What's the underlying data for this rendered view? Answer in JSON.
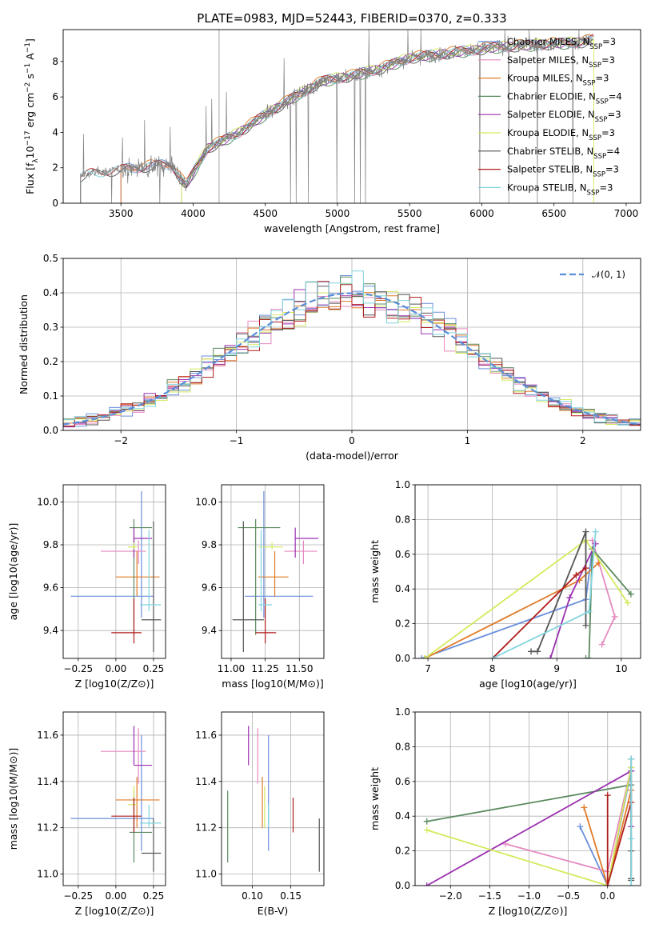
{
  "title": "PLATE=0983, MJD=52443, FIBERID=0370, z=0.333",
  "colors": {
    "chabrier_miles": "#6a8fdc",
    "salpeter_miles": "#e58abf",
    "kroupa_miles": "#e07b28",
    "chabrier_elodie": "#5a8a5e",
    "salpeter_elodie": "#9b30b0",
    "kroupa_elodie": "#d4ea5c",
    "chabrier_stelib": "#555555",
    "salpeter_stelib": "#b01c1c",
    "kroupa_stelib": "#82d4de",
    "data": "#808080",
    "normal": "#5b8fd8"
  },
  "chart_data": [
    {
      "id": "spectrum",
      "type": "line",
      "xlabel": "wavelength [Angstrom, rest frame]",
      "ylabel": "Flux [f_λ10^-17 erg cm^-2 s^-1 A^-1]",
      "xlim": [
        3100,
        7100
      ],
      "ylim": [
        0,
        9.8
      ],
      "xticks": [
        3500,
        4000,
        4500,
        5000,
        5500,
        6000,
        6500,
        7000
      ],
      "yticks": [
        0,
        2,
        4,
        6,
        8
      ],
      "trend": {
        "x": [
          3220,
          3300,
          3500,
          3700,
          3850,
          3950,
          4100,
          4300,
          4500,
          4700,
          4900,
          5100,
          5300,
          5500,
          5700,
          5900,
          6100,
          6300,
          6500,
          6700,
          6750,
          6800,
          7000
        ],
        "y": [
          1.5,
          1.7,
          1.9,
          2.1,
          2.2,
          1.0,
          3.1,
          3.9,
          5.0,
          6.0,
          6.9,
          7.2,
          7.6,
          8.2,
          8.4,
          8.6,
          8.8,
          8.9,
          9.0,
          9.1,
          9.2,
          9.3,
          9.4
        ]
      },
      "legend": [
        {
          "label": "Chabrier MILES, N",
          "sub": "SSP",
          "suffix": "=3",
          "color_key": "chabrier_miles"
        },
        {
          "label": "Salpeter MILES, N",
          "sub": "SSP",
          "suffix": "=3",
          "color_key": "salpeter_miles"
        },
        {
          "label": "Kroupa MILES, N",
          "sub": "SSP",
          "suffix": "=3",
          "color_key": "kroupa_miles"
        },
        {
          "label": "Chabrier ELODIE, N",
          "sub": "SSP",
          "suffix": "=4",
          "color_key": "chabrier_elodie"
        },
        {
          "label": "Salpeter ELODIE, N",
          "sub": "SSP",
          "suffix": "=3",
          "color_key": "salpeter_elodie"
        },
        {
          "label": "Kroupa ELODIE, N",
          "sub": "SSP",
          "suffix": "=3",
          "color_key": "kroupa_elodie"
        },
        {
          "label": "Chabrier STELIB, N",
          "sub": "SSP",
          "suffix": "=4",
          "color_key": "chabrier_stelib"
        },
        {
          "label": "Salpeter STELIB, N",
          "sub": "SSP",
          "suffix": "=3",
          "color_key": "salpeter_stelib"
        },
        {
          "label": "Kroupa STELIB, N",
          "sub": "SSP",
          "suffix": "=3",
          "color_key": "kroupa_stelib"
        }
      ]
    },
    {
      "id": "residuals",
      "type": "line",
      "xlabel": "(data-model)/error",
      "ylabel": "Normed distribution",
      "xlim": [
        -2.5,
        2.5
      ],
      "ylim": [
        0,
        0.5
      ],
      "xticks": [
        -2,
        -1,
        0,
        1,
        2
      ],
      "yticks": [
        0.0,
        0.1,
        0.2,
        0.3,
        0.4,
        0.5
      ],
      "legend": "N(0,1)",
      "legend_position": "top-right",
      "bin_width": 0.1
    },
    {
      "id": "age_vs_Z",
      "type": "scatter",
      "xlabel": "Z [log10(Z/Z⊙)]",
      "ylabel": "age [log10(age/yr)]",
      "xlim": [
        -0.35,
        0.33
      ],
      "ylim": [
        9.27,
        10.08
      ],
      "xticks": [
        -0.25,
        0.0,
        0.25
      ],
      "yticks": [
        9.4,
        9.6,
        9.8,
        10.0
      ],
      "points": [
        {
          "key": "chabrier_miles",
          "x": 0.17,
          "xe": [
            0.47,
            0.08
          ],
          "y": 9.56,
          "ye": [
            0.1,
            0.49
          ]
        },
        {
          "key": "salpeter_miles",
          "x": 0.15,
          "xe": [
            0.25,
            0.05
          ],
          "y": 9.77,
          "ye": [
            0.06,
            0.05
          ]
        },
        {
          "key": "kroupa_miles",
          "x": 0.14,
          "xe": [
            0.14,
            0.15
          ],
          "y": 9.65,
          "ye": [
            0.09,
            0.12
          ]
        },
        {
          "key": "chabrier_elodie",
          "x": 0.12,
          "xe": [
            0.03,
            0.12
          ],
          "y": 9.88,
          "ye": [
            0.5,
            0.04
          ]
        },
        {
          "key": "salpeter_elodie",
          "x": 0.12,
          "xe": [
            0.0,
            0.12
          ],
          "y": 9.83,
          "ye": [
            0.09,
            0.05
          ]
        },
        {
          "key": "kroupa_elodie",
          "x": 0.12,
          "xe": [
            0.04,
            0.02
          ],
          "y": 9.79,
          "ye": [
            0.01,
            0.02
          ]
        },
        {
          "key": "chabrier_stelib",
          "x": 0.25,
          "xe": [
            0.08,
            0.05
          ],
          "y": 9.45,
          "ye": [
            0.15,
            0.46
          ]
        },
        {
          "key": "salpeter_stelib",
          "x": 0.12,
          "xe": [
            0.15,
            0.05
          ],
          "y": 9.39,
          "ye": [
            0.05,
            0.16
          ]
        },
        {
          "key": "kroupa_stelib",
          "x": 0.22,
          "xe": [
            0.06,
            0.08
          ],
          "y": 9.52,
          "ye": [
            0.03,
            0.35
          ]
        }
      ]
    },
    {
      "id": "age_vs_mass",
      "type": "scatter",
      "xlabel": "mass [log10(M/M⊙)]",
      "ylabel": "",
      "xlim": [
        10.93,
        11.68
      ],
      "ylim": [
        9.27,
        10.08
      ],
      "xticks": [
        11.0,
        11.25,
        11.5
      ],
      "yticks": [
        9.4,
        9.6,
        9.8,
        10.0
      ],
      "points": [
        {
          "key": "chabrier_miles",
          "x": 11.24,
          "xe": [
            0.14,
            0.36
          ],
          "y": 9.56,
          "ye": [
            0.1,
            0.49
          ]
        },
        {
          "key": "salpeter_miles",
          "x": 11.53,
          "xe": [
            0.14,
            0.1
          ],
          "y": 9.77,
          "ye": [
            0.06,
            0.05
          ]
        },
        {
          "key": "kroupa_miles",
          "x": 11.32,
          "xe": [
            0.12,
            0.1
          ],
          "y": 9.65,
          "ye": [
            0.09,
            0.12
          ]
        },
        {
          "key": "chabrier_elodie",
          "x": 11.18,
          "xe": [
            0.13,
            0.18
          ],
          "y": 9.88,
          "ye": [
            0.5,
            0.04
          ]
        },
        {
          "key": "salpeter_elodie",
          "x": 11.47,
          "xe": [
            0.0,
            0.17
          ],
          "y": 9.83,
          "ye": [
            0.09,
            0.05
          ]
        },
        {
          "key": "kroupa_elodie",
          "x": 11.3,
          "xe": [
            0.1,
            0.08
          ],
          "y": 9.79,
          "ye": [
            0.01,
            0.02
          ]
        },
        {
          "key": "chabrier_stelib",
          "x": 11.09,
          "xe": [
            0.08,
            0.15
          ],
          "y": 9.45,
          "ye": [
            0.15,
            0.46
          ]
        },
        {
          "key": "salpeter_stelib",
          "x": 11.25,
          "xe": [
            0.07,
            0.08
          ],
          "y": 9.39,
          "ye": [
            0.05,
            0.16
          ]
        },
        {
          "key": "kroupa_stelib",
          "x": 11.22,
          "xe": [
            0.02,
            0.08
          ],
          "y": 9.52,
          "ye": [
            0.03,
            0.35
          ]
        }
      ]
    },
    {
      "id": "weight_vs_age",
      "type": "line",
      "xlabel": "age [log10(age/yr)]",
      "ylabel": "mass weight",
      "xlim": [
        6.8,
        10.3
      ],
      "ylim": [
        0,
        1.0
      ],
      "xticks": [
        7,
        8,
        9,
        10
      ],
      "yticks": [
        0.0,
        0.2,
        0.4,
        0.6,
        0.8,
        1.0
      ],
      "series": [
        {
          "key": "chabrier_miles",
          "x": [
            6.9,
            9.45,
            9.55
          ],
          "y": [
            0.0,
            0.34,
            0.63
          ]
        },
        {
          "key": "salpeter_miles",
          "x": [
            9.7,
            9.9,
            9.55
          ],
          "y": [
            0.08,
            0.24,
            0.68
          ]
        },
        {
          "key": "kroupa_miles",
          "x": [
            6.95,
            9.35,
            9.65
          ],
          "y": [
            0.0,
            0.45,
            0.55
          ]
        },
        {
          "key": "chabrier_elodie",
          "x": [
            9.45,
            9.5,
            9.55,
            10.15
          ],
          "y": [
            0.0,
            0.0,
            0.63,
            0.37
          ]
        },
        {
          "key": "salpeter_elodie",
          "x": [
            8.9,
            9.2,
            9.6
          ],
          "y": [
            0.0,
            0.35,
            0.66
          ]
        },
        {
          "key": "kroupa_elodie",
          "x": [
            6.95,
            9.45,
            10.1
          ],
          "y": [
            0.0,
            0.68,
            0.32
          ]
        },
        {
          "key": "chabrier_stelib",
          "x": [
            8.6,
            8.7,
            9.45,
            9.45
          ],
          "y": [
            0.04,
            0.04,
            0.73,
            0.19
          ]
        },
        {
          "key": "salpeter_stelib",
          "x": [
            8.0,
            9.3,
            9.45
          ],
          "y": [
            0.0,
            0.48,
            0.52
          ]
        },
        {
          "key": "kroupa_stelib",
          "x": [
            8.0,
            9.5,
            9.6
          ],
          "y": [
            0.0,
            0.27,
            0.73
          ]
        }
      ]
    },
    {
      "id": "mass_vs_Z",
      "type": "scatter",
      "xlabel": "Z [log10(Z/Z⊙)]",
      "ylabel": "mass [log10(M/M⊙)]",
      "xlim": [
        -0.35,
        0.33
      ],
      "ylim": [
        10.95,
        11.7
      ],
      "xticks": [
        -0.25,
        0.0,
        0.25
      ],
      "yticks": [
        11.0,
        11.2,
        11.4,
        11.6
      ],
      "points": [
        {
          "key": "chabrier_miles",
          "x": 0.17,
          "xe": [
            0.47,
            0.08
          ],
          "y": 11.24,
          "ye": [
            0.14,
            0.36
          ]
        },
        {
          "key": "salpeter_miles",
          "x": 0.15,
          "xe": [
            0.25,
            0.05
          ],
          "y": 11.53,
          "ye": [
            0.14,
            0.1
          ]
        },
        {
          "key": "kroupa_miles",
          "x": 0.14,
          "xe": [
            0.14,
            0.15
          ],
          "y": 11.32,
          "ye": [
            0.12,
            0.1
          ]
        },
        {
          "key": "chabrier_elodie",
          "x": 0.12,
          "xe": [
            0.03,
            0.12
          ],
          "y": 11.18,
          "ye": [
            0.13,
            0.18
          ]
        },
        {
          "key": "salpeter_elodie",
          "x": 0.12,
          "xe": [
            0.0,
            0.12
          ],
          "y": 11.47,
          "ye": [
            0.0,
            0.17
          ]
        },
        {
          "key": "kroupa_elodie",
          "x": 0.12,
          "xe": [
            0.04,
            0.02
          ],
          "y": 11.3,
          "ye": [
            0.1,
            0.08
          ]
        },
        {
          "key": "chabrier_stelib",
          "x": 0.25,
          "xe": [
            0.08,
            0.05
          ],
          "y": 11.09,
          "ye": [
            0.08,
            0.15
          ]
        },
        {
          "key": "salpeter_stelib",
          "x": 0.12,
          "xe": [
            0.15,
            0.05
          ],
          "y": 11.25,
          "ye": [
            0.07,
            0.08
          ]
        },
        {
          "key": "kroupa_stelib",
          "x": 0.22,
          "xe": [
            0.06,
            0.08
          ],
          "y": 11.22,
          "ye": [
            0.02,
            0.08
          ]
        }
      ]
    },
    {
      "id": "mass_vs_ebv",
      "type": "scatter",
      "xlabel": "E(B-V)",
      "ylabel": "",
      "xlim": [
        0.06,
        0.193
      ],
      "ylim": [
        10.95,
        11.7
      ],
      "xticks": [
        0.1,
        0.15
      ],
      "yticks": [
        11.0,
        11.2,
        11.4,
        11.6
      ],
      "points": [
        {
          "key": "chabrier_miles",
          "x": 0.121,
          "y": 11.24,
          "ye": [
            0.14,
            0.36
          ]
        },
        {
          "key": "salpeter_miles",
          "x": 0.107,
          "y": 11.53,
          "ye": [
            0.14,
            0.1
          ]
        },
        {
          "key": "kroupa_miles",
          "x": 0.113,
          "y": 11.32,
          "ye": [
            0.12,
            0.1
          ]
        },
        {
          "key": "chabrier_elodie",
          "x": 0.068,
          "y": 11.18,
          "ye": [
            0.13,
            0.18
          ]
        },
        {
          "key": "salpeter_elodie",
          "x": 0.095,
          "y": 11.47,
          "ye": [
            0.0,
            0.17
          ]
        },
        {
          "key": "kroupa_elodie",
          "x": 0.116,
          "y": 11.3,
          "ye": [
            0.1,
            0.08
          ]
        },
        {
          "key": "chabrier_stelib",
          "x": 0.187,
          "y": 11.09,
          "ye": [
            0.08,
            0.15
          ]
        },
        {
          "key": "salpeter_stelib",
          "x": 0.153,
          "y": 11.25,
          "ye": [
            0.07,
            0.08
          ]
        },
        {
          "key": "kroupa_stelib",
          "x": 0.121,
          "y": 11.22,
          "ye": [
            0.02,
            0.08
          ]
        }
      ]
    },
    {
      "id": "weight_vs_Z",
      "type": "line",
      "xlabel": "Z [log10(Z/Z⊙)]",
      "ylabel": "mass weight",
      "xlim": [
        -2.45,
        0.42
      ],
      "ylim": [
        0,
        1.0
      ],
      "xticks": [
        -2.0,
        -1.5,
        -1.0,
        -0.5,
        0.0
      ],
      "yticks": [
        0.0,
        0.2,
        0.4,
        0.6,
        0.8,
        1.0
      ],
      "series": [
        {
          "key": "chabrier_miles",
          "x": [
            -0.35,
            0.0,
            0.3
          ],
          "y": [
            0.34,
            0.0,
            0.66
          ]
        },
        {
          "key": "salpeter_miles",
          "x": [
            -1.3,
            0.0,
            0.3
          ],
          "y": [
            0.24,
            0.08,
            0.68
          ]
        },
        {
          "key": "kroupa_miles",
          "x": [
            -0.3,
            0.0,
            0.3
          ],
          "y": [
            0.45,
            0.0,
            0.55
          ]
        },
        {
          "key": "chabrier_elodie",
          "x": [
            -2.3,
            0.3,
            0.3
          ],
          "y": [
            0.37,
            0.58,
            0.04
          ]
        },
        {
          "key": "salpeter_elodie",
          "x": [
            -2.3,
            0.3,
            0.3
          ],
          "y": [
            0.0,
            0.66,
            0.34
          ]
        },
        {
          "key": "kroupa_elodie",
          "x": [
            -2.3,
            0.0,
            0.3
          ],
          "y": [
            0.32,
            0.0,
            0.68
          ]
        },
        {
          "key": "chabrier_stelib",
          "x": [
            0.3,
            0.3,
            0.3,
            0.3
          ],
          "y": [
            0.73,
            0.04,
            0.03,
            0.2
          ]
        },
        {
          "key": "salpeter_stelib",
          "x": [
            0.0,
            0.0,
            0.3
          ],
          "y": [
            0.52,
            0.0,
            0.48
          ]
        },
        {
          "key": "kroupa_stelib",
          "x": [
            0.3,
            0.3,
            0.3
          ],
          "y": [
            0.73,
            0.27,
            0.0
          ]
        }
      ]
    }
  ]
}
